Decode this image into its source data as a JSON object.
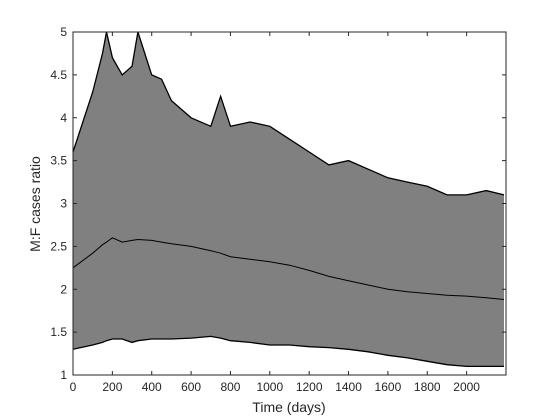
{
  "chart_data": {
    "type": "area",
    "title": "",
    "xlabel": "Time (days)",
    "ylabel": "M:F cases ratio",
    "xlim": [
      0,
      2200
    ],
    "ylim": [
      1,
      5
    ],
    "xticks": [
      0,
      200,
      400,
      600,
      800,
      1000,
      1200,
      1400,
      1600,
      1800,
      2000
    ],
    "yticks": [
      1,
      1.5,
      2,
      2.5,
      3,
      3.5,
      4,
      4.5,
      5
    ],
    "xtick_labels": [
      "0",
      "200",
      "400",
      "600",
      "800",
      "1000",
      "1200",
      "1400",
      "1600",
      "1800",
      "2000"
    ],
    "ytick_labels": [
      "1",
      "1.5",
      "2",
      "2.5",
      "3",
      "3.5",
      "4",
      "4.5",
      "5"
    ],
    "grid": false,
    "legend": "none",
    "band_color": "#808080",
    "line_color": "#000000",
    "x": [
      0,
      100,
      150,
      170,
      200,
      250,
      300,
      330,
      400,
      450,
      500,
      600,
      700,
      750,
      800,
      900,
      1000,
      1100,
      1200,
      1300,
      1400,
      1500,
      1600,
      1700,
      1800,
      1900,
      2000,
      2100,
      2190
    ],
    "series": [
      {
        "values": [
          3.6,
          4.3,
          4.75,
          5.0,
          4.7,
          4.5,
          4.6,
          5.0,
          4.5,
          4.45,
          4.2,
          4.0,
          3.9,
          4.25,
          3.9,
          3.95,
          3.9,
          3.75,
          3.6,
          3.45,
          3.5,
          3.4,
          3.3,
          3.25,
          3.2,
          3.1,
          3.1,
          3.15,
          3.1
        ]
      },
      {
        "values": [
          2.25,
          2.42,
          2.52,
          2.55,
          2.6,
          2.55,
          2.57,
          2.58,
          2.57,
          2.55,
          2.53,
          2.5,
          2.45,
          2.42,
          2.38,
          2.35,
          2.32,
          2.28,
          2.22,
          2.15,
          2.1,
          2.05,
          2.0,
          1.97,
          1.95,
          1.93,
          1.92,
          1.9,
          1.88
        ]
      },
      {
        "values": [
          1.3,
          1.35,
          1.38,
          1.4,
          1.42,
          1.42,
          1.38,
          1.4,
          1.42,
          1.42,
          1.42,
          1.43,
          1.45,
          1.43,
          1.4,
          1.38,
          1.35,
          1.35,
          1.33,
          1.32,
          1.3,
          1.27,
          1.23,
          1.2,
          1.16,
          1.12,
          1.1,
          1.1,
          1.1
        ]
      }
    ]
  }
}
